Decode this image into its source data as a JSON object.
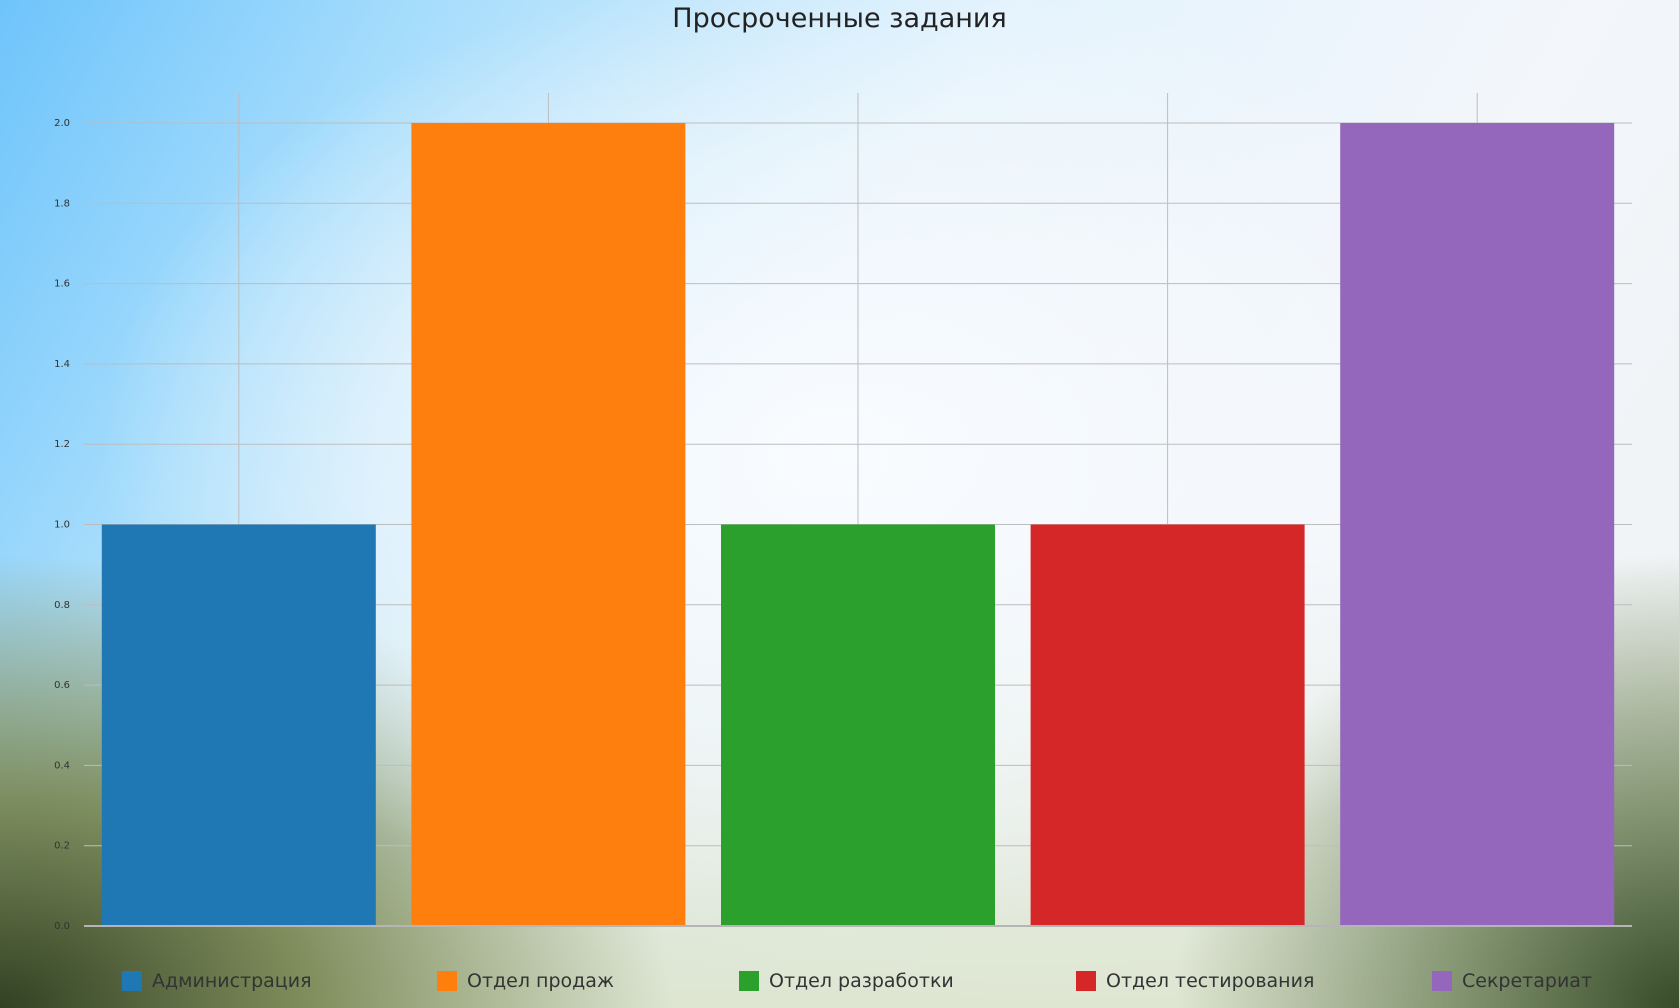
{
  "chart_data": {
    "type": "bar",
    "title": "Просроченные задания",
    "categories": [
      "Администрация",
      "Отдел продаж",
      "Отдел разработки",
      "Отдел тестирования",
      "Секретариат"
    ],
    "values": [
      1,
      2,
      1,
      1,
      2
    ],
    "colors": [
      "#1f77b4",
      "#ff7f0e",
      "#2ca02c",
      "#d62728",
      "#9467bd"
    ],
    "ylim": [
      0,
      2.0
    ],
    "yticks": [
      "0.0",
      "0.2",
      "0.4",
      "0.6",
      "0.8",
      "1.0",
      "1.2",
      "1.4",
      "1.6",
      "1.8",
      "2.0"
    ],
    "xlabel": "",
    "ylabel": "",
    "grid": true,
    "legend": "bottom"
  }
}
